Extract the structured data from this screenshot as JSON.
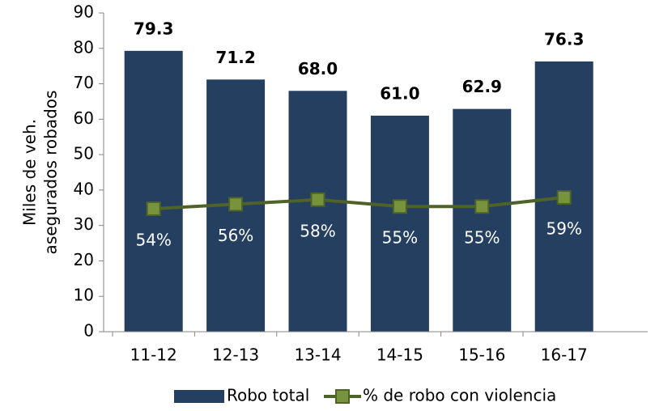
{
  "chart_data": {
    "type": "bar_line",
    "ylabel": [
      "Miles de veh.",
      "asegurados robados"
    ],
    "categories": [
      "11-12",
      "12-13",
      "13-14",
      "14-15",
      "15-16",
      "16-17"
    ],
    "ylim": [
      0,
      90
    ],
    "yticks": [
      0,
      10,
      20,
      30,
      40,
      50,
      60,
      70,
      80,
      90
    ],
    "y2lim": [
      0,
      140
    ],
    "legend": "bottom",
    "series": [
      {
        "name": "Robo total",
        "type": "bar",
        "color": "#243f60",
        "values": [
          79.3,
          71.2,
          68.0,
          61.0,
          62.9,
          76.3
        ],
        "value_labels": [
          "79.3",
          "71.2",
          "68.0",
          "61.0",
          "62.9",
          "76.3"
        ]
      },
      {
        "name": "% de robo con violencia",
        "type": "line",
        "axis": "y2",
        "color": "#4f6228",
        "marker_color": "#77933c",
        "values": [
          54,
          56,
          58,
          55,
          55,
          59
        ],
        "value_labels": [
          "54%",
          "56%",
          "58%",
          "55%",
          "55%",
          "59%"
        ]
      }
    ]
  }
}
